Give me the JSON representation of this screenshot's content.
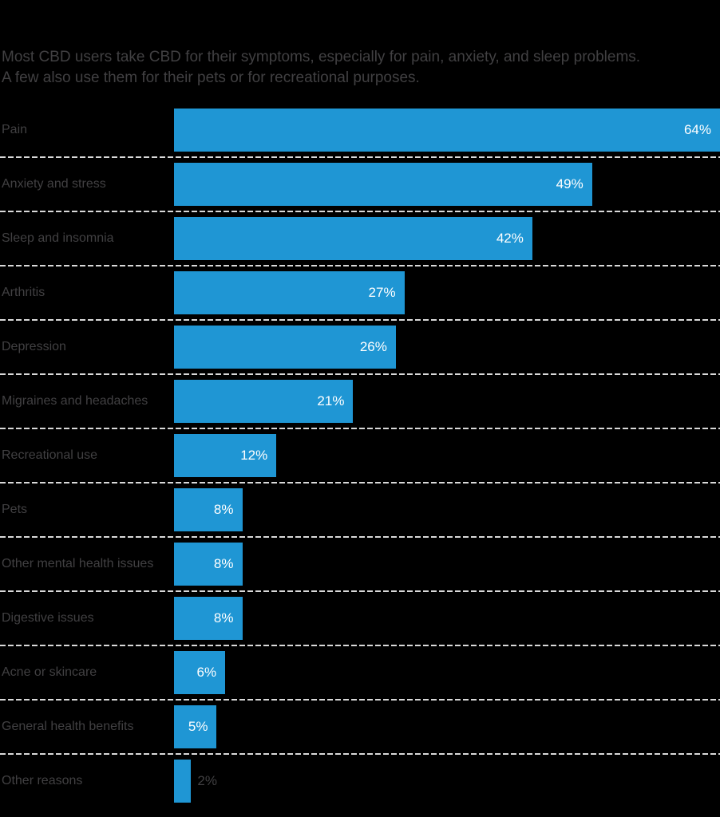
{
  "page": {
    "background": "#000000"
  },
  "title": {
    "lines": [
      "Most CBD users take CBD for their symptoms, especially for pain, anxiety, and sleep problems.",
      "A few also use them for their pets or for recreational purposes."
    ]
  },
  "colors": {
    "bar": "#1f96d4",
    "title_text": "#414042",
    "category_text": "#414042",
    "value_text_inside": "#ffffff",
    "value_text_outside": "#414042",
    "separator": "#d9d9d9",
    "background": "#000000"
  },
  "chart_data": {
    "type": "bar",
    "orientation": "horizontal",
    "title": "Most CBD users take CBD for their symptoms, especially for pain, anxiety, and sleep problems. A few also use them for their pets or for recreational purposes.",
    "xlabel": "",
    "ylabel": "",
    "unit": "%",
    "xlim": [
      0,
      64
    ],
    "grid": "dashed-row-separators",
    "legend": "none",
    "categories": [
      "Pain",
      "Anxiety and stress",
      "Sleep and insomnia",
      "Arthritis",
      "Depression",
      "Migraines and headaches",
      "Recreational use",
      "Pets",
      "Other mental health issues",
      "Digestive issues",
      "Acne or skincare",
      "General health benefits",
      "Other reasons"
    ],
    "values": [
      64,
      49,
      42,
      27,
      26,
      21,
      12,
      8,
      8,
      8,
      6,
      5,
      2
    ],
    "value_labels": [
      "64%",
      "49%",
      "42%",
      "27%",
      "26%",
      "21%",
      "12%",
      "8%",
      "8%",
      "8%",
      "6%",
      "5%",
      "2%"
    ]
  }
}
